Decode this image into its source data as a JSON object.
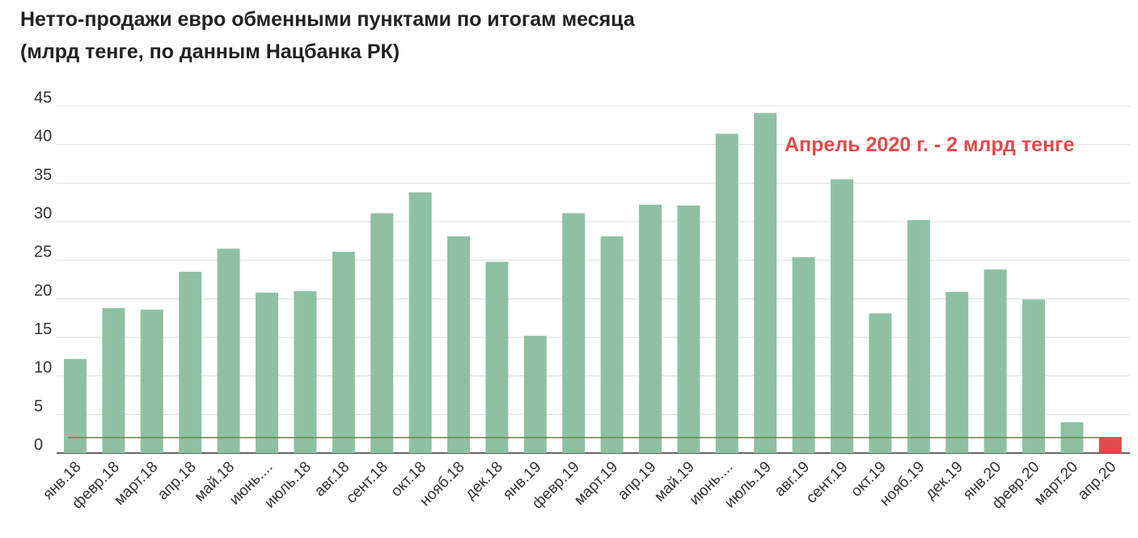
{
  "chart_data": {
    "type": "bar",
    "title_line1": "Нетто-продажи евро обменными пунктами по итогам месяца",
    "title_line2": "(млрд тенге, по данным Нацбанка РК)",
    "xlabel": "",
    "ylabel": "",
    "ylim": [
      0,
      45
    ],
    "yticks": [
      0,
      5,
      10,
      15,
      20,
      25,
      30,
      35,
      40,
      45
    ],
    "grid": true,
    "categories": [
      "янв.18",
      "февр.18",
      "март.18",
      "апр.18",
      "май.18",
      "июнь....",
      "июль.18",
      "авг.18",
      "сент.18",
      "окт.18",
      "нояб.18",
      "дек.18",
      "янв.19",
      "февр.19",
      "март.19",
      "апр.19",
      "май.19",
      "июнь....",
      "июль.19",
      "авг.19",
      "сент.19",
      "окт.19",
      "нояб.19",
      "дек.19",
      "янв.20",
      "февр.20",
      "март.20",
      "апр.20"
    ],
    "values": [
      12.2,
      18.8,
      18.6,
      23.5,
      26.5,
      20.8,
      21.0,
      26.1,
      31.1,
      33.8,
      28.1,
      24.8,
      15.2,
      31.1,
      28.1,
      32.2,
      32.1,
      41.4,
      44.1,
      25.4,
      35.5,
      18.1,
      30.2,
      20.9,
      23.8,
      19.9,
      4.0,
      2.0
    ],
    "highlight_index": 27,
    "reference_line": 2.0,
    "annotation": "Апрель 2020 г. - 2 млрд тенге",
    "colors": {
      "bar": "#8ec1a4",
      "highlight": "#df4b4b",
      "reference": "#df4b4b",
      "annotation": "#df4b4b",
      "grid": "#dddddd",
      "axis": "#333333"
    }
  }
}
